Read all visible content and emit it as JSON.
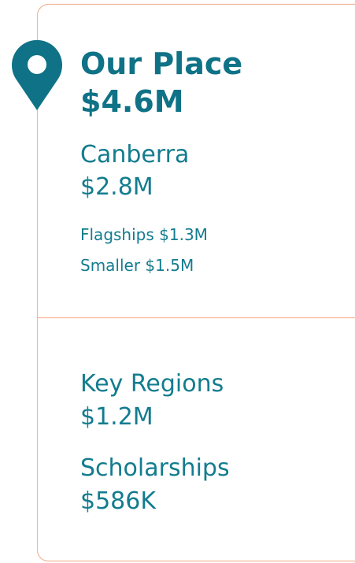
{
  "header": {
    "title": "Our Place",
    "amount": "$4.6M"
  },
  "sections": [
    {
      "name": "Canberra",
      "amount": "$2.8M",
      "items": [
        "Flagships $1.3M",
        "Smaller $1.5M"
      ]
    },
    {
      "name": "Key Regions",
      "amount": "$1.2M"
    },
    {
      "name": "Scholarships",
      "amount": "$586K"
    }
  ]
}
